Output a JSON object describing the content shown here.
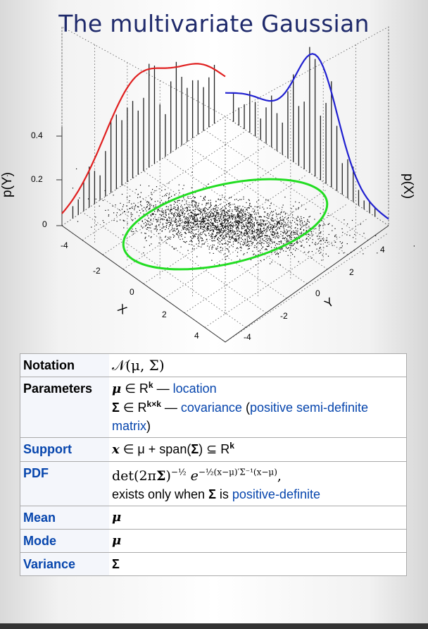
{
  "slide": {
    "title": "The multivariate Gaussian"
  },
  "plot": {
    "y_tick_labels": [
      "0.4",
      "0.2",
      "0"
    ],
    "left_axis_ticks": [
      "-4",
      "-2",
      "0",
      "2",
      "4"
    ],
    "right_axis_ticks": [
      "4",
      "2",
      "0",
      "-2",
      "-4"
    ],
    "left_axis_label": "X",
    "right_axis_label": "Y",
    "left_wall_label": "p(Y)",
    "right_wall_label": "p(X)",
    "colors": {
      "left_curve": "#e02020",
      "right_curve": "#2020d0",
      "ellipse": "#22dd22",
      "bars": "#222222",
      "points": "#000000",
      "title": "#1f2a6b"
    }
  },
  "infobox": {
    "notation": {
      "label": "Notation",
      "value": "𝒩(μ, Σ)"
    },
    "parameters": {
      "label": "Parameters",
      "mu_sym": "μ",
      "mu_rest": "∈ R",
      "mu_sup": "k",
      "mu_dash": " — ",
      "mu_link": "location",
      "sigma_sym": "Σ",
      "sigma_rest": "∈ R",
      "sigma_sup": "k×k",
      "sigma_dash": " — ",
      "sigma_link": "covariance",
      "sigma_paren_open": " (",
      "sigma_link2": "positive semi-definite matrix",
      "sigma_paren_close": ")"
    },
    "support": {
      "label": "Support",
      "x_sym": "x",
      "text": " ∈ μ + span(",
      "sigma": "Σ",
      "text2": ") ⊆ R",
      "sup": "k"
    },
    "pdf": {
      "label": "PDF",
      "det": "det(2π",
      "sigma": "Σ",
      "close": ")",
      "exp1": "−½",
      "e": " e",
      "exp2": "−½(x−μ)′Σ⁻¹(x−μ)",
      "comma": ",",
      "note_pre": "exists only when ",
      "note_sigma": "Σ",
      "note_mid": " is ",
      "note_link": "positive-definite"
    },
    "mean": {
      "label": "Mean",
      "value": "μ"
    },
    "mode": {
      "label": "Mode",
      "value": "μ"
    },
    "variance": {
      "label": "Variance",
      "value": "Σ"
    }
  }
}
